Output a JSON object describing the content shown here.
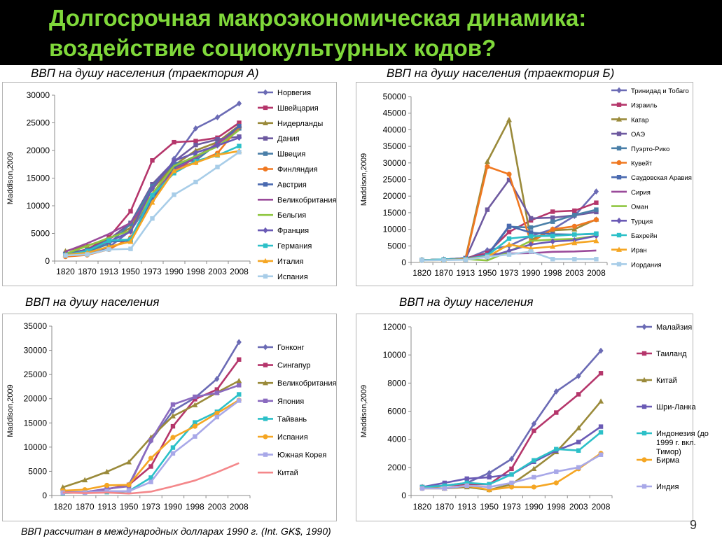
{
  "slide": {
    "title_line1": "Долгосрочная макроэкономическая динамика:",
    "title_line2": "воздействие социокультурных кодов?",
    "footnote": "ВВП рассчитан в международных долларах 1990 г. (Int. GK$, 1990)",
    "page_number": "9",
    "title_color": "#7fd83a"
  },
  "chart_data": [
    {
      "id": "c1",
      "type": "line",
      "title": "ВВП на душу населения (траектория А)",
      "ylabel": "Maddison,2009",
      "xlabel": "",
      "categories": [
        "1820",
        "1870",
        "1913",
        "1950",
        "1973",
        "1990",
        "1998",
        "2003",
        "2008"
      ],
      "ylim": [
        0,
        30000
      ],
      "yticks": [
        0,
        5000,
        10000,
        15000,
        20000,
        25000,
        30000
      ],
      "series": [
        {
          "name": "Норвегия",
          "color": "#6b6bb5",
          "marker": "diamond",
          "values": [
            1100,
            1300,
            2500,
            5500,
            11300,
            18500,
            24000,
            26000,
            28500
          ]
        },
        {
          "name": "Швейцария",
          "color": "#b5366b",
          "marker": "square",
          "values": [
            1300,
            2100,
            4300,
            9000,
            18200,
            21500,
            21700,
            22300,
            25000
          ]
        },
        {
          "name": "Нидерланды",
          "color": "#9a8a3a",
          "marker": "triangle",
          "values": [
            1800,
            2800,
            4000,
            6000,
            13000,
            17300,
            20000,
            21500,
            24500
          ]
        },
        {
          "name": "Дания",
          "color": "#6e5aa0",
          "marker": "square",
          "values": [
            1300,
            2000,
            3900,
            6900,
            13900,
            18000,
            21000,
            22000,
            22500
          ]
        },
        {
          "name": "Швеция",
          "color": "#4a7fa8",
          "marker": "square",
          "values": [
            1200,
            1700,
            3100,
            6700,
            13500,
            17700,
            18200,
            21200,
            24000
          ]
        },
        {
          "name": "Финляндия",
          "color": "#f07820",
          "marker": "circle",
          "values": [
            800,
            1100,
            2100,
            4200,
            11000,
            16900,
            17800,
            19500,
            24300
          ]
        },
        {
          "name": "Австрия",
          "color": "#4a6ab0",
          "marker": "square",
          "values": [
            1200,
            2000,
            3500,
            3700,
            11200,
            16900,
            18900,
            21100,
            24400
          ]
        },
        {
          "name": "Великобритания",
          "color": "#9a4a9a",
          "marker": "none",
          "values": [
            1700,
            3200,
            4900,
            6900,
            12000,
            16400,
            18700,
            21300,
            23700
          ]
        },
        {
          "name": "Бельгия",
          "color": "#8fc640",
          "marker": "none",
          "values": [
            1300,
            2700,
            4200,
            5500,
            12200,
            17200,
            19000,
            20700,
            23700
          ]
        },
        {
          "name": "Франция",
          "color": "#6a5ab5",
          "marker": "diamond",
          "values": [
            1100,
            1900,
            3500,
            5300,
            13100,
            18100,
            19600,
            20900,
            22300
          ]
        },
        {
          "name": "Германия",
          "color": "#2cc0c8",
          "marker": "square",
          "values": [
            1100,
            1800,
            3700,
            3900,
            11900,
            15900,
            18100,
            19100,
            20800
          ]
        },
        {
          "name": "Италия",
          "color": "#f5a623",
          "marker": "triangle",
          "values": [
            1100,
            1500,
            2600,
            3500,
            10600,
            16300,
            17800,
            19200,
            19900
          ]
        },
        {
          "name": "Испания",
          "color": "#a8cde8",
          "marker": "square",
          "values": [
            1000,
            1200,
            2100,
            2200,
            7700,
            12000,
            14300,
            17000,
            19700
          ]
        }
      ]
    },
    {
      "id": "c2",
      "type": "line",
      "title": "ВВП на душу населения (траектория Б)",
      "ylabel": "Maddison,2009",
      "xlabel": "",
      "categories": [
        "1820",
        "1870",
        "1913",
        "1950",
        "1973",
        "1990",
        "1998",
        "2003",
        "2008"
      ],
      "ylim": [
        0,
        50000
      ],
      "yticks": [
        0,
        5000,
        10000,
        15000,
        20000,
        25000,
        30000,
        35000,
        40000,
        45000,
        50000
      ],
      "series": [
        {
          "name": "Тринидад и Тобаго",
          "color": "#6b6bb5",
          "marker": "diamond",
          "values": [
            700,
            900,
            1000,
            3700,
            5000,
            8000,
            10000,
            14000,
            21400
          ]
        },
        {
          "name": "Израиль",
          "color": "#b5366b",
          "marker": "square",
          "values": [
            700,
            900,
            1300,
            2800,
            9200,
            12700,
            15300,
            15600,
            18000
          ]
        },
        {
          "name": "Катар",
          "color": "#9a8a3a",
          "marker": "triangle",
          "values": [
            700,
            900,
            1300,
            30400,
            43000,
            6800,
            9700,
            10000,
            13000
          ]
        },
        {
          "name": "ОАЭ",
          "color": "#6e5aa0",
          "marker": "square",
          "values": [
            700,
            900,
            1000,
            15900,
            24900,
            13300,
            13500,
            14200,
            15200
          ]
        },
        {
          "name": "Пуэрто-Рико",
          "color": "#4a7fa8",
          "marker": "square",
          "values": [
            700,
            900,
            1300,
            2100,
            10800,
            10500,
            12300,
            14300,
            15900
          ]
        },
        {
          "name": "Кувейт",
          "color": "#f07820",
          "marker": "circle",
          "values": [
            700,
            900,
            1000,
            28900,
            26600,
            6100,
            10000,
            10900,
            12900
          ]
        },
        {
          "name": "Саудовская Аравия",
          "color": "#4a6ab0",
          "marker": "square",
          "values": [
            700,
            900,
            1000,
            2200,
            11000,
            9000,
            8500,
            8400,
            8600
          ]
        },
        {
          "name": "Сирия",
          "color": "#9a4a9a",
          "marker": "none",
          "values": [
            700,
            900,
            1000,
            2400,
            2700,
            2800,
            3200,
            3300,
            3600
          ]
        },
        {
          "name": "Оман",
          "color": "#8fc640",
          "marker": "none",
          "values": [
            700,
            900,
            1000,
            600,
            3300,
            6500,
            6900,
            7100,
            8000
          ]
        },
        {
          "name": "Турция",
          "color": "#6a5ab5",
          "marker": "diamond",
          "values": [
            700,
            900,
            1200,
            1600,
            3500,
            5400,
            6300,
            6700,
            8000
          ]
        },
        {
          "name": "Бахрейн",
          "color": "#2cc0c8",
          "marker": "square",
          "values": [
            700,
            900,
            1000,
            2100,
            7200,
            7900,
            8000,
            8400,
            8700
          ]
        },
        {
          "name": "Иран",
          "color": "#f5a623",
          "marker": "triangle",
          "values": [
            600,
            700,
            1000,
            1700,
            5400,
            4200,
            4800,
            5900,
            6500
          ]
        },
        {
          "name": "Иордания",
          "color": "#a8cde8",
          "marker": "square",
          "values": [
            600,
            700,
            800,
            1700,
            2400,
            3300,
            1000,
            1000,
            1000
          ]
        }
      ]
    },
    {
      "id": "c3",
      "type": "line",
      "title": "ВВП на душу населения",
      "ylabel": "Maddison,2009",
      "xlabel": "",
      "categories": [
        "1820",
        "1870",
        "1913",
        "1950",
        "1973",
        "1990",
        "1998",
        "2003",
        "2008"
      ],
      "ylim": [
        0,
        35000
      ],
      "yticks": [
        0,
        5000,
        10000,
        15000,
        20000,
        25000,
        30000,
        35000
      ],
      "series": [
        {
          "name": "Гонконг",
          "color": "#6b6bb5",
          "marker": "diamond",
          "values": [
            600,
            700,
            1300,
            2200,
            11300,
            17500,
            20200,
            24100,
            31700
          ]
        },
        {
          "name": "Сингапур",
          "color": "#b5366b",
          "marker": "square",
          "values": [
            600,
            700,
            1300,
            2200,
            6000,
            14300,
            19900,
            21900,
            28100
          ]
        },
        {
          "name": "Великобритания",
          "color": "#9a8a3a",
          "marker": "triangle",
          "values": [
            1700,
            3200,
            4900,
            6900,
            12000,
            16400,
            18700,
            21300,
            23700
          ]
        },
        {
          "name": "Япония",
          "color": "#8a6abf",
          "marker": "square",
          "values": [
            700,
            700,
            1400,
            1900,
            11400,
            18800,
            20400,
            21200,
            22800
          ]
        },
        {
          "name": "Тайвань",
          "color": "#2cc0c8",
          "marker": "square",
          "values": [
            500,
            600,
            700,
            900,
            3700,
            9900,
            15100,
            17300,
            20900
          ]
        },
        {
          "name": "Испания",
          "color": "#f5a623",
          "marker": "circle",
          "values": [
            1000,
            1200,
            2100,
            2200,
            7700,
            12000,
            14300,
            17000,
            19700
          ]
        },
        {
          "name": "Южная Корея",
          "color": "#a8a8e8",
          "marker": "square",
          "values": [
            600,
            600,
            900,
            900,
            2800,
            8700,
            12200,
            16200,
            19600
          ]
        },
        {
          "name": "Китай",
          "color": "#f4878a",
          "marker": "none",
          "values": [
            600,
            500,
            600,
            400,
            800,
            1900,
            3100,
            4800,
            6700
          ]
        }
      ]
    },
    {
      "id": "c4",
      "type": "line",
      "title": "ВВП на душу населения",
      "ylabel": "Maddison,2009",
      "xlabel": "",
      "categories": [
        "1820",
        "1870",
        "1913",
        "1950",
        "1973",
        "1990",
        "1998",
        "2003",
        "2008"
      ],
      "ylim": [
        0,
        12000
      ],
      "yticks": [
        0,
        2000,
        4000,
        6000,
        8000,
        10000,
        12000
      ],
      "series": [
        {
          "name": "Малайзия",
          "color": "#6b6bb5",
          "marker": "diamond",
          "values": [
            600,
            700,
            900,
            1600,
            2600,
            5100,
            7400,
            8500,
            10300
          ]
        },
        {
          "name": "Таиланд",
          "color": "#b5366b",
          "marker": "square",
          "values": [
            600,
            700,
            800,
            800,
            1900,
            4600,
            5900,
            7200,
            8700
          ]
        },
        {
          "name": "Китай",
          "color": "#9a8a3a",
          "marker": "triangle",
          "values": [
            600,
            500,
            600,
            400,
            800,
            1900,
            3100,
            4800,
            6700
          ]
        },
        {
          "name": "Шри-Ланка",
          "color": "#6a5ab5",
          "marker": "square",
          "values": [
            600,
            900,
            1200,
            1300,
            1500,
            2400,
            3200,
            3800,
            4900
          ]
        },
        {
          "name": "Индонезия (до 1999 г. вкл. Тимор)",
          "color": "#2cc0c8",
          "marker": "square",
          "values": [
            600,
            700,
            900,
            800,
            1500,
            2500,
            3300,
            3200,
            4500
          ]
        },
        {
          "name": "Бирма",
          "color": "#f5a623",
          "marker": "circle",
          "values": [
            500,
            500,
            700,
            400,
            600,
            600,
            900,
            1900,
            3000
          ]
        },
        {
          "name": "Индия",
          "color": "#a8a8e8",
          "marker": "square",
          "values": [
            500,
            500,
            700,
            600,
            900,
            1300,
            1700,
            2000,
            2900
          ]
        }
      ]
    }
  ]
}
